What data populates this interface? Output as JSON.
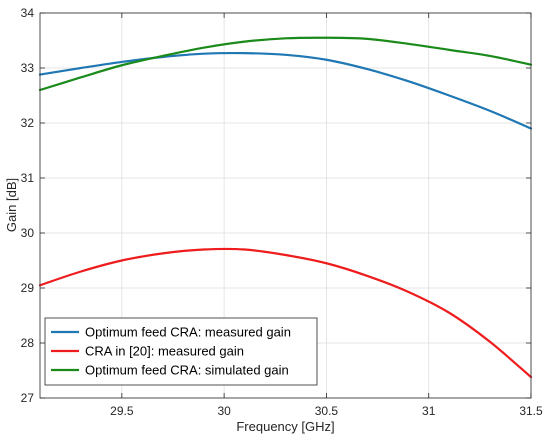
{
  "chart_data": {
    "type": "line",
    "xlabel": "Frequency [GHz]",
    "ylabel": "Gain [dB]",
    "xlim": [
      29.1,
      31.5
    ],
    "ylim": [
      27,
      34
    ],
    "xticks": [
      29.5,
      30,
      30.5,
      31,
      31.5
    ],
    "xtick_labels": [
      "29.5",
      "30",
      "30.5",
      "31",
      "31.5"
    ],
    "yticks": [
      27,
      28,
      29,
      30,
      31,
      32,
      33,
      34
    ],
    "ytick_labels": [
      "27",
      "28",
      "29",
      "30",
      "31",
      "32",
      "33",
      "34"
    ],
    "grid": true,
    "legend_position": "bottom-left",
    "series": [
      {
        "name": "Optimum feed CRA: measured gain",
        "color": "#1f77b4",
        "x": [
          29.1,
          29.3,
          29.5,
          29.7,
          29.9,
          30.1,
          30.3,
          30.5,
          30.7,
          30.9,
          31.1,
          31.3,
          31.5
        ],
        "y": [
          32.88,
          33.0,
          33.11,
          33.2,
          33.26,
          33.27,
          33.24,
          33.15,
          32.98,
          32.76,
          32.5,
          32.22,
          31.9
        ]
      },
      {
        "name": "CRA in [20]: measured gain",
        "color": "#ee1c1c",
        "x": [
          29.1,
          29.3,
          29.5,
          29.7,
          29.9,
          30.1,
          30.3,
          30.5,
          30.7,
          30.9,
          31.1,
          31.3,
          31.5
        ],
        "y": [
          29.05,
          29.3,
          29.5,
          29.63,
          29.7,
          29.7,
          29.6,
          29.45,
          29.22,
          28.93,
          28.55,
          28.02,
          27.38
        ]
      },
      {
        "name": "Optimum feed CRA: simulated gain",
        "color": "#1a8a1a",
        "x": [
          29.1,
          29.3,
          29.5,
          29.7,
          29.9,
          30.1,
          30.3,
          30.5,
          30.7,
          30.9,
          31.1,
          31.3,
          31.5
        ],
        "y": [
          32.6,
          32.83,
          33.05,
          33.22,
          33.37,
          33.48,
          33.54,
          33.55,
          33.53,
          33.44,
          33.33,
          33.22,
          33.06
        ]
      }
    ]
  }
}
